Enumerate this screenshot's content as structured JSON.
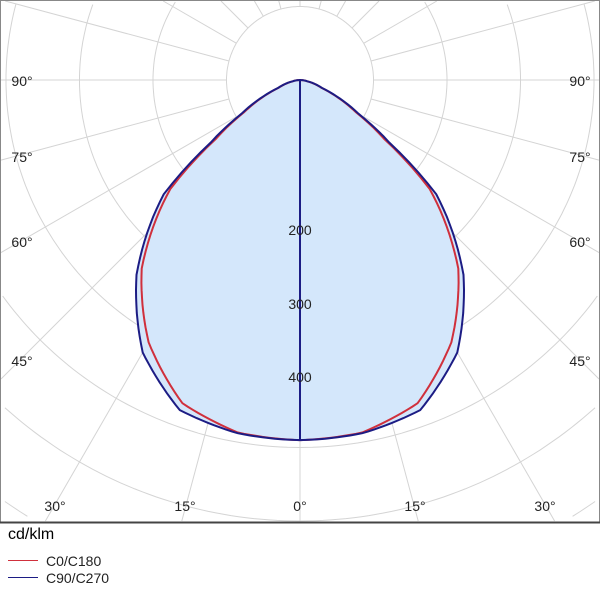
{
  "chart_data": {
    "type": "polar",
    "unit": "cd/klm",
    "radial_ticks": [
      100,
      200,
      300,
      400,
      500,
      600,
      700
    ],
    "radial_labels": [
      "200",
      "300",
      "400"
    ],
    "angle_labels_left": [
      "90°",
      "75°",
      "60°",
      "45°",
      "30°",
      "15°"
    ],
    "angle_label_center": "0°",
    "angle_labels_right": [
      "15°",
      "30°",
      "45°",
      "60°",
      "75°",
      "90°"
    ],
    "grid": true,
    "fill_color": "#d4e7fb",
    "angles_deg": [
      0,
      10,
      20,
      30,
      40,
      50,
      55,
      60,
      65,
      70,
      80,
      90
    ],
    "series": [
      {
        "name": "C0/C180",
        "color": "#d0303c",
        "values": [
          490,
          487,
          468,
          412,
          335,
          230,
          140,
          88,
          58,
          31,
          10,
          0
        ]
      },
      {
        "name": "C90/C270",
        "color": "#1c1c84",
        "values": [
          490,
          488,
          478,
          428,
          346,
          242,
          148,
          92,
          60,
          32,
          10,
          0
        ]
      }
    ]
  }
}
